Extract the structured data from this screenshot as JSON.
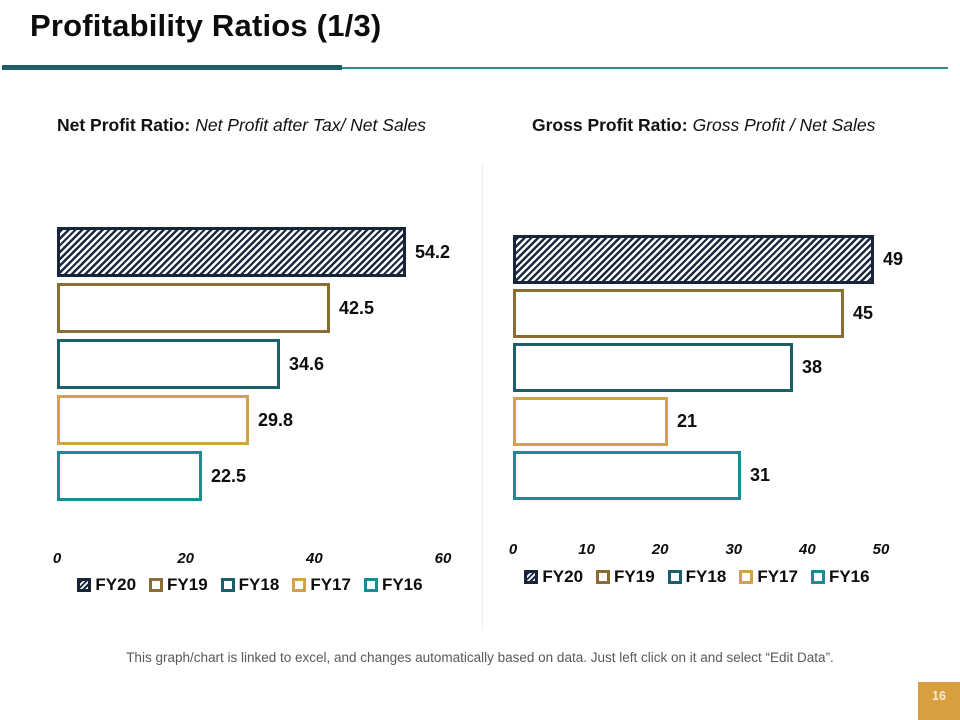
{
  "slide": {
    "title": "Profitability Ratios (1/3)",
    "footer": "This graph/chart is linked to excel, and changes automatically based on data. Just left click on it and select “Edit Data”.",
    "page_number": "16"
  },
  "colors": {
    "divider_thick": "#1e5f66",
    "divider_thin": "#2f8d91",
    "page_badge_bg": "#d99e3d",
    "page_badge_text": "#f5edd2",
    "footer_text": "#595959",
    "hatch_navy": "#1b2a40"
  },
  "series_colors": {
    "FY20": {
      "pattern": "hatch",
      "color": "#1b2a40"
    },
    "FY19": {
      "pattern": "outline",
      "color": "#8a6c35"
    },
    "FY18": {
      "pattern": "outline",
      "color": "#1a5f69"
    },
    "FY17": {
      "pattern": "outline",
      "color": "#d2a24a"
    },
    "FY16": {
      "pattern": "outline",
      "color": "#1e8a93"
    }
  },
  "chart_data": [
    {
      "type": "bar",
      "orientation": "horizontal",
      "title": "Net Profit Ratio:",
      "subtitle": "Net Profit after Tax/ Net Sales",
      "categories": [
        "FY20",
        "FY19",
        "FY18",
        "FY17",
        "FY16"
      ],
      "values": [
        54.2,
        42.5,
        34.6,
        29.8,
        22.5
      ],
      "data_labels": [
        "54.2",
        "42.5",
        "34.6",
        "29.8",
        "22.5"
      ],
      "xlim": [
        0,
        60
      ],
      "x_ticks": [
        0,
        20,
        40,
        60
      ],
      "grid": false,
      "legend": [
        "FY20",
        "FY19",
        "FY18",
        "FY17",
        "FY16"
      ],
      "legend_position": "bottom"
    },
    {
      "type": "bar",
      "orientation": "horizontal",
      "title": "Gross Profit Ratio:",
      "subtitle": "Gross Profit / Net Sales",
      "categories": [
        "FY20",
        "FY19",
        "FY18",
        "FY17",
        "FY16"
      ],
      "values": [
        49,
        45,
        38,
        21,
        31
      ],
      "data_labels": [
        "49",
        "45",
        "38",
        "21",
        "31"
      ],
      "xlim": [
        0,
        50
      ],
      "x_ticks": [
        0,
        10,
        20,
        30,
        40,
        50
      ],
      "grid": false,
      "legend": [
        "FY20",
        "FY19",
        "FY18",
        "FY17",
        "FY16"
      ],
      "legend_position": "bottom"
    }
  ]
}
